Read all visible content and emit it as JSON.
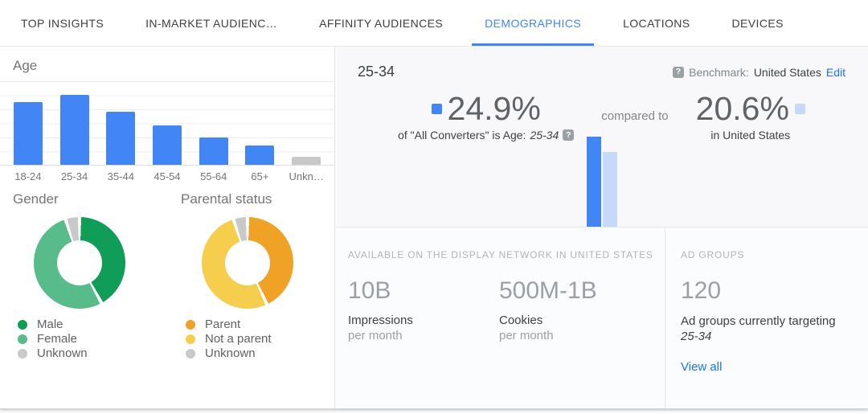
{
  "colors": {
    "accent_blue": "#4285f4",
    "light_blue": "#c6d9f9",
    "link_blue": "#1a73e8",
    "male_green": "#0f9d58",
    "female_green": "#57bb8a",
    "unknown_gray": "#c9c9c9",
    "parent_orange": "#efa226",
    "not_parent_yellow": "#f7cd4e"
  },
  "tab_bar": {
    "tabs": [
      {
        "label": "TOP INSIGHTS",
        "active": false
      },
      {
        "label": "IN-MARKET AUDIENC…",
        "active": false
      },
      {
        "label": "AFFINITY AUDIENCES",
        "active": false
      },
      {
        "label": "DEMOGRAPHICS",
        "active": true
      },
      {
        "label": "LOCATIONS",
        "active": false
      },
      {
        "label": "DEVICES",
        "active": false
      }
    ]
  },
  "left_panel": {
    "age_section_title": "Age",
    "gender_section_title": "Gender",
    "parental_section_title": "Parental status"
  },
  "right_panel": {
    "segment_title": "25-34",
    "help_icon_glyph": "?",
    "benchmark_label": "Benchmark:",
    "benchmark_value": "United States",
    "benchmark_edit": "Edit",
    "segment_stat": {
      "value": "24.9%",
      "description_prefix": "of \"All Converters\" is Age:",
      "description_segment": "25-34"
    },
    "compared_to": "compared to",
    "benchmark_stat": {
      "value": "20.6%",
      "description": "in United States"
    },
    "network": {
      "header": "AVAILABLE ON THE DISPLAY NETWORK IN UNITED STATES",
      "stats": [
        {
          "value": "10B",
          "label": "Impressions",
          "sublabel": "per month"
        },
        {
          "value": "500M-1B",
          "label": "Cookies",
          "sublabel": "per month"
        }
      ]
    },
    "ad_groups": {
      "header": "AD GROUPS",
      "value": "120",
      "description": "Ad groups currently targeting",
      "description_segment": "25-34",
      "view_all": "View all"
    }
  },
  "chart_data": [
    {
      "name": "age-distribution",
      "type": "bar",
      "title": "Age",
      "categories": [
        "18-24",
        "25-34",
        "35-44",
        "45-54",
        "55-64",
        "65+",
        "Unkn…"
      ],
      "values": [
        22.3,
        24.9,
        18.9,
        14.0,
        9.7,
        6.9,
        2.9
      ],
      "unit": "%",
      "ylabel": "",
      "xlabel": "",
      "ylim": [
        0,
        30
      ],
      "gridline_step": 5,
      "grid": true,
      "bar_colors": [
        "#4285f4",
        "#4285f4",
        "#4285f4",
        "#4285f4",
        "#4285f4",
        "#4285f4",
        "#c9c9c9"
      ]
    },
    {
      "name": "gender",
      "type": "pie",
      "title": "Gender",
      "legend_position": "bottom",
      "slices": [
        {
          "label": "Male",
          "value": 42,
          "color": "#0f9d58"
        },
        {
          "label": "Female",
          "value": 53,
          "color": "#57bb8a"
        },
        {
          "label": "Unknown",
          "value": 5,
          "color": "#c9c9c9"
        }
      ]
    },
    {
      "name": "parental-status",
      "type": "pie",
      "title": "Parental status",
      "legend_position": "bottom",
      "slices": [
        {
          "label": "Parent",
          "value": 43,
          "color": "#efa226"
        },
        {
          "label": "Not a parent",
          "value": 52,
          "color": "#f7cd4e"
        },
        {
          "label": "Unknown",
          "value": 5,
          "color": "#c9c9c9"
        }
      ]
    },
    {
      "name": "segment-vs-benchmark",
      "type": "bar",
      "categories": [
        "All Converters 25-34",
        "United States 25-34"
      ],
      "values": [
        24.9,
        20.6
      ],
      "unit": "%",
      "bar_colors": [
        "#4285f4",
        "#c6d9f9"
      ]
    }
  ]
}
